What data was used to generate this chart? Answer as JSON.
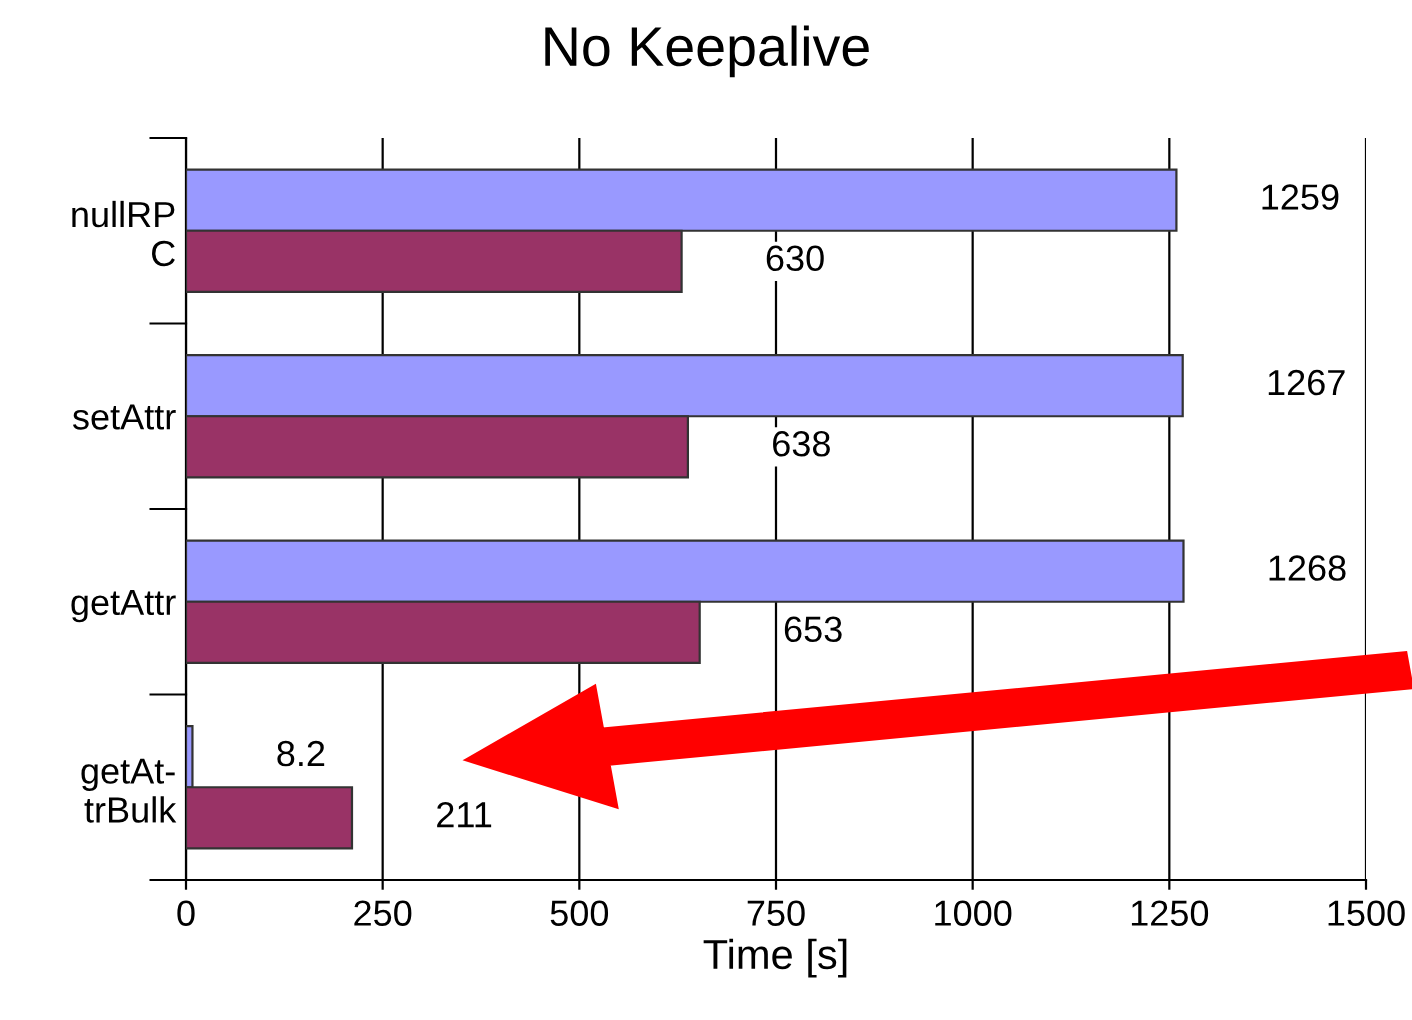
{
  "chart_data": {
    "type": "bar",
    "orientation": "horizontal",
    "title": "No Keepalive",
    "xlabel": "Time [s]",
    "categories": [
      "nullRP\nC",
      "setAttr",
      "getAttr",
      "getAt-\ntrBulk"
    ],
    "series": [
      {
        "color": "#9999ff",
        "values": [
          1259,
          1267,
          1268,
          8.2
        ]
      },
      {
        "color": "#993366",
        "values": [
          630,
          638,
          653,
          211
        ]
      }
    ],
    "xlim": [
      0,
      1500
    ],
    "xticks": [
      0,
      250,
      500,
      750,
      1000,
      1250,
      1500
    ],
    "grid": "x",
    "data_labels": true
  }
}
